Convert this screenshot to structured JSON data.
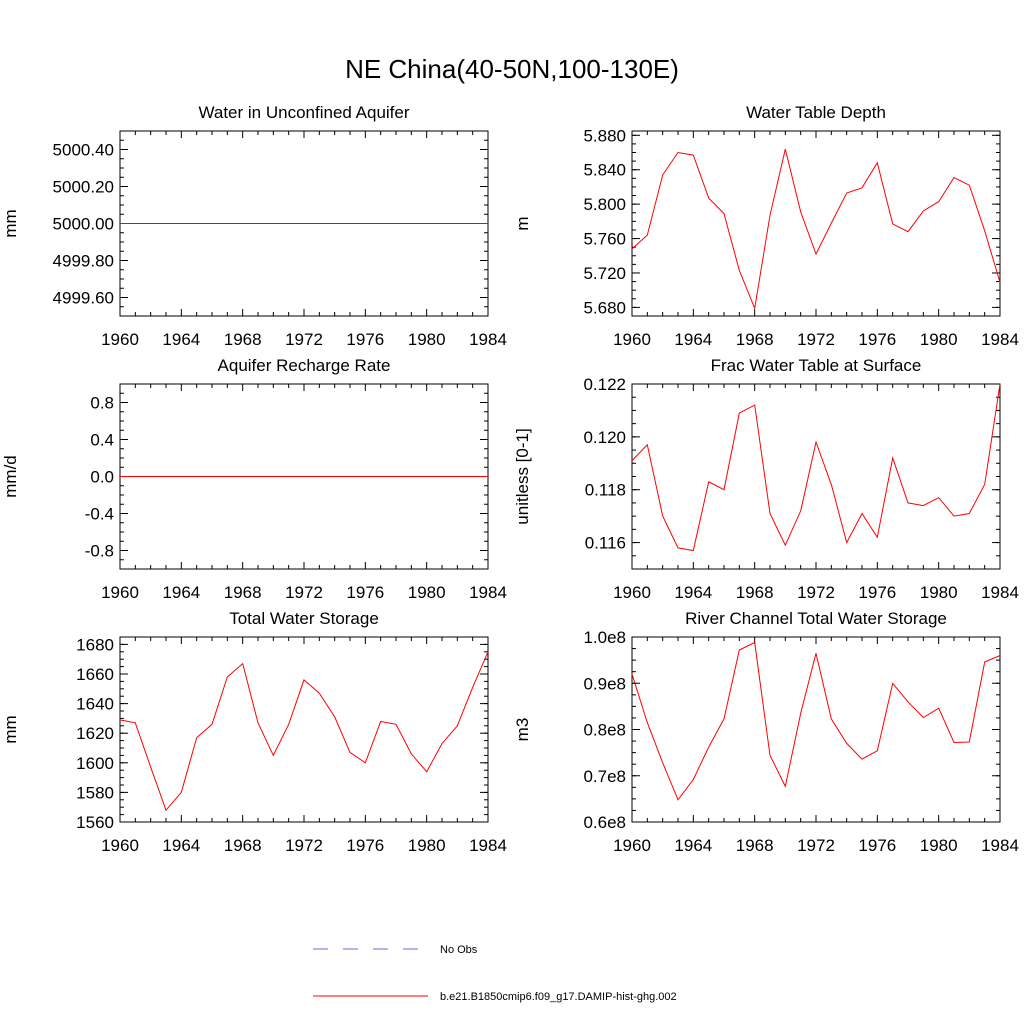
{
  "figure": {
    "title": "NE China(40-50N,100-130E)"
  },
  "legend": [
    {
      "label": "No Obs",
      "color": "#6b6bd8",
      "dash": true
    },
    {
      "label": "b.e21.B1850cmip6.f09_g17.DAMIP-hist-ghg.002",
      "color": "#ff0000",
      "dash": false
    }
  ],
  "chart_data": [
    {
      "type": "line",
      "title": "Water in Unconfined Aquifer",
      "ylabel": "mm",
      "xlim": [
        1960,
        1984
      ],
      "ylim": [
        4999.5,
        5000.5
      ],
      "xticks": [
        "1960",
        "1964",
        "1968",
        "1972",
        "1976",
        "1980",
        "1984"
      ],
      "yticks": [
        {
          "v": 5000.4,
          "l": "5000.40"
        },
        {
          "v": 5000.2,
          "l": "5000.20"
        },
        {
          "v": 5000.0,
          "l": "5000.00"
        },
        {
          "v": 4999.8,
          "l": "4999.80"
        },
        {
          "v": 4999.6,
          "l": "4999.60"
        }
      ],
      "x": [
        1960,
        1961,
        1962,
        1963,
        1964,
        1965,
        1966,
        1967,
        1968,
        1969,
        1970,
        1971,
        1972,
        1973,
        1974,
        1975,
        1976,
        1977,
        1978,
        1979,
        1980,
        1981,
        1982,
        1983,
        1984
      ],
      "series": [
        {
          "values": [
            5000,
            5000,
            5000,
            5000,
            5000,
            5000,
            5000,
            5000,
            5000,
            5000,
            5000,
            5000,
            5000,
            5000,
            5000,
            5000,
            5000,
            5000,
            5000,
            5000,
            5000,
            5000,
            5000,
            5000,
            5000
          ],
          "color": "#ff0000"
        }
      ]
    },
    {
      "type": "line",
      "title": "Water Table Depth",
      "ylabel": "m",
      "xlim": [
        1960,
        1984
      ],
      "ylim": [
        5.67,
        5.885
      ],
      "xticks": [
        "1960",
        "1964",
        "1968",
        "1972",
        "1976",
        "1980",
        "1984"
      ],
      "yticks": [
        {
          "v": 5.88,
          "l": "5.880"
        },
        {
          "v": 5.84,
          "l": "5.840"
        },
        {
          "v": 5.8,
          "l": "5.800"
        },
        {
          "v": 5.76,
          "l": "5.760"
        },
        {
          "v": 5.72,
          "l": "5.720"
        },
        {
          "v": 5.68,
          "l": "5.680"
        }
      ],
      "x": [
        1960,
        1961,
        1962,
        1963,
        1964,
        1965,
        1966,
        1967,
        1968,
        1969,
        1970,
        1971,
        1972,
        1973,
        1974,
        1975,
        1976,
        1977,
        1978,
        1979,
        1980,
        1981,
        1982,
        1983,
        1984
      ],
      "series": [
        {
          "values": [
            5.748,
            5.764,
            5.834,
            5.86,
            5.857,
            5.807,
            5.789,
            5.723,
            5.679,
            5.787,
            5.864,
            5.791,
            5.742,
            5.778,
            5.813,
            5.819,
            5.848,
            5.777,
            5.768,
            5.792,
            5.803,
            5.831,
            5.822,
            5.769,
            5.709
          ],
          "color": "#ff0000"
        }
      ]
    },
    {
      "type": "line",
      "title": "Aquifer Recharge Rate",
      "ylabel": "mm/d",
      "xlim": [
        1960,
        1984
      ],
      "ylim": [
        -1.0,
        1.0
      ],
      "xticks": [
        "1960",
        "1964",
        "1968",
        "1972",
        "1976",
        "1980",
        "1984"
      ],
      "yticks": [
        {
          "v": 0.8,
          "l": "0.8"
        },
        {
          "v": 0.4,
          "l": "0.4"
        },
        {
          "v": 0.0,
          "l": "0.0"
        },
        {
          "v": -0.4,
          "l": "-0.4"
        },
        {
          "v": -0.8,
          "l": "-0.8"
        }
      ],
      "x": [
        1960,
        1961,
        1962,
        1963,
        1964,
        1965,
        1966,
        1967,
        1968,
        1969,
        1970,
        1971,
        1972,
        1973,
        1974,
        1975,
        1976,
        1977,
        1978,
        1979,
        1980,
        1981,
        1982,
        1983,
        1984
      ],
      "series": [
        {
          "values": [
            0,
            0,
            0,
            0,
            0,
            0,
            0,
            0,
            0,
            0,
            0,
            0,
            0,
            0,
            0,
            0,
            0,
            0,
            0,
            0,
            0,
            0,
            0,
            0,
            0
          ],
          "color": "#ff0000"
        }
      ]
    },
    {
      "type": "line",
      "title": "Frac Water Table at Surface",
      "ylabel": "unitless [0-1]",
      "xlim": [
        1960,
        1984
      ],
      "ylim": [
        0.115,
        0.122
      ],
      "xticks": [
        "1960",
        "1964",
        "1968",
        "1972",
        "1976",
        "1980",
        "1984"
      ],
      "yticks": [
        {
          "v": 0.122,
          "l": "0.122"
        },
        {
          "v": 0.12,
          "l": "0.120"
        },
        {
          "v": 0.118,
          "l": "0.118"
        },
        {
          "v": 0.116,
          "l": "0.116"
        }
      ],
      "x": [
        1960,
        1961,
        1962,
        1963,
        1964,
        1965,
        1966,
        1967,
        1968,
        1969,
        1970,
        1971,
        1972,
        1973,
        1974,
        1975,
        1976,
        1977,
        1978,
        1979,
        1980,
        1981,
        1982,
        1983,
        1984
      ],
      "series": [
        {
          "values": [
            0.1191,
            0.1197,
            0.117,
            0.1158,
            0.1157,
            0.1183,
            0.118,
            0.1209,
            0.1212,
            0.1171,
            0.1159,
            0.1172,
            0.1198,
            0.1182,
            0.116,
            0.1171,
            0.1162,
            0.1192,
            0.1175,
            0.1174,
            0.1177,
            0.117,
            0.1171,
            0.1182,
            0.122
          ],
          "color": "#ff0000"
        }
      ]
    },
    {
      "type": "line",
      "title": "Total Water Storage",
      "ylabel": "mm",
      "xlim": [
        1960,
        1984
      ],
      "ylim": [
        1560,
        1685
      ],
      "xticks": [
        "1960",
        "1964",
        "1968",
        "1972",
        "1976",
        "1980",
        "1984"
      ],
      "yticks": [
        {
          "v": 1680,
          "l": "1680"
        },
        {
          "v": 1660,
          "l": "1660"
        },
        {
          "v": 1640,
          "l": "1640"
        },
        {
          "v": 1620,
          "l": "1620"
        },
        {
          "v": 1600,
          "l": "1600"
        },
        {
          "v": 1580,
          "l": "1580"
        },
        {
          "v": 1560,
          "l": "1560"
        }
      ],
      "x": [
        1960,
        1961,
        1962,
        1963,
        1964,
        1965,
        1966,
        1967,
        1968,
        1969,
        1970,
        1971,
        1972,
        1973,
        1974,
        1975,
        1976,
        1977,
        1978,
        1979,
        1980,
        1981,
        1982,
        1983,
        1984
      ],
      "series": [
        {
          "values": [
            1629,
            1627,
            1597,
            1568,
            1580,
            1617,
            1626,
            1658,
            1667,
            1627,
            1605,
            1626,
            1656,
            1647,
            1631,
            1607,
            1600,
            1628,
            1626,
            1606,
            1594,
            1613,
            1625,
            1651,
            1675
          ],
          "color": "#ff0000"
        }
      ]
    },
    {
      "type": "line",
      "title": "River Channel Total Water Storage",
      "ylabel": "m3",
      "xlim": [
        1960,
        1984
      ],
      "ylim": [
        60000000.0,
        100000000.0
      ],
      "xticks": [
        "1960",
        "1964",
        "1968",
        "1972",
        "1976",
        "1980",
        "1984"
      ],
      "yticks": [
        {
          "v": 100000000.0,
          "l": "1.0e8"
        },
        {
          "v": 90000000.0,
          "l": "0.9e8"
        },
        {
          "v": 80000000.0,
          "l": "0.8e8"
        },
        {
          "v": 70000000.0,
          "l": "0.7e8"
        },
        {
          "v": 60000000.0,
          "l": "0.6e8"
        }
      ],
      "x": [
        1960,
        1961,
        1962,
        1963,
        1964,
        1965,
        1966,
        1967,
        1968,
        1969,
        1970,
        1971,
        1972,
        1973,
        1974,
        1975,
        1976,
        1977,
        1978,
        1979,
        1980,
        1981,
        1982,
        1983,
        1984
      ],
      "series": [
        {
          "values": [
            92000000,
            81500000,
            72800000,
            64800000,
            69200000,
            76200000,
            82300000,
            97200000,
            98800000,
            74400000,
            67700000,
            83500000,
            96500000,
            82300000,
            77000000,
            73600000,
            75400000,
            90000000,
            86000000,
            82600000,
            84600000,
            77200000,
            77300000,
            94600000,
            96000000
          ],
          "color": "#ff0000"
        }
      ]
    }
  ]
}
